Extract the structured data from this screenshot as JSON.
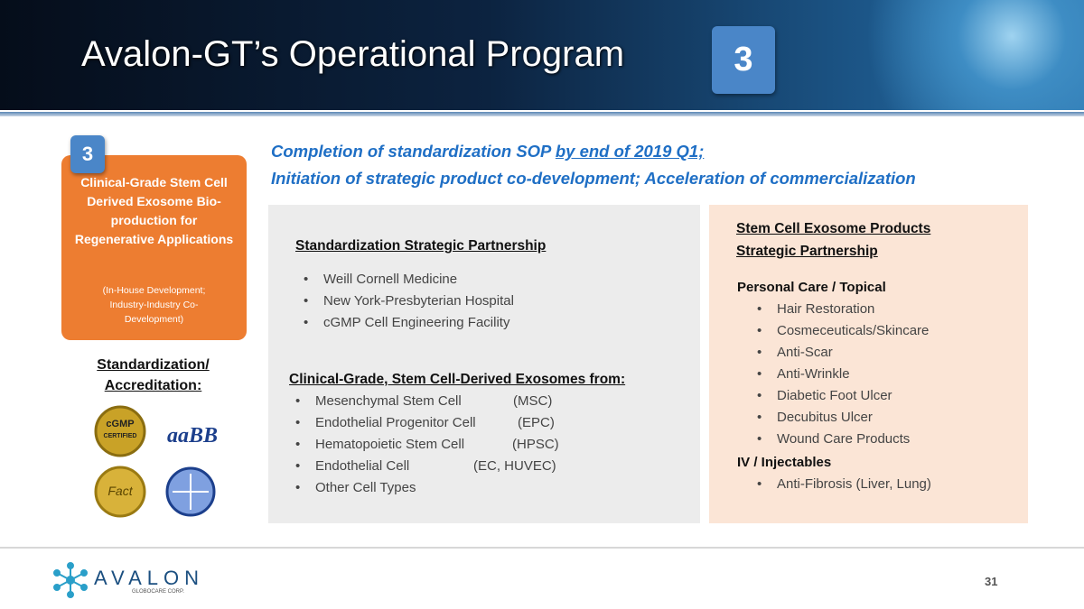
{
  "header": {
    "title": "Avalon-GT’s Operational Program",
    "badge": "3"
  },
  "program_card": {
    "badge": "3",
    "heading": "Clinical-Grade Stem Cell Derived Exosome Bio-production for Regenerative Applications",
    "note": "(In-House Development; Industry-Industry Co-Development)"
  },
  "accreditation": {
    "label": "Standardization/ Accreditation:",
    "logos": [
      "cGMP",
      "CERTIFIED",
      "aaBB",
      "Fact"
    ]
  },
  "headline": {
    "line1": "Completion of standardization SOP",
    "line1_underlined": "by end of 2019 Q1;",
    "line2": "Initiation of strategic product co-development; Acceleration of commercialization"
  },
  "standardization": {
    "title": "Standardization Strategic Partnership",
    "items": [
      "Weill Cornell Medicine",
      "New York-Presbyterian Hospital",
      "cGMP Cell Engineering Facility"
    ]
  },
  "exosomes": {
    "title": "Clinical-Grade, Stem Cell-Derived Exosomes from:",
    "items": [
      {
        "name": "Mesenchymal Stem Cell",
        "abbr": "(MSC)"
      },
      {
        "name": "Endothelial Progenitor Cell",
        "abbr": "(EPC)"
      },
      {
        "name": "Hematopoietic Stem Cell",
        "abbr": "(HPSC)"
      },
      {
        "name": "Endothelial Cell",
        "abbr": "(EC, HUVEC)"
      },
      {
        "name": "Other Cell Types"
      }
    ]
  },
  "products": {
    "title_line1": "Stem Cell Exosome Products",
    "title_line2": "Strategic Partnership",
    "groups": [
      {
        "name": "Personal Care / Topical",
        "items": [
          "Hair Restoration",
          "Cosmeceuticals/Skincare",
          "Anti-Scar",
          "Anti-Wrinkle",
          "Diabetic Foot Ulcer",
          "Decubitus Ulcer",
          "Wound Care Products"
        ]
      },
      {
        "name": "IV / Injectables",
        "items": [
          "Anti-Fibrosis (Liver, Lung)"
        ]
      }
    ]
  },
  "footer": {
    "brand": "AVALON",
    "brand_sub": "GLOBOCARE CORP.",
    "page": "31"
  }
}
